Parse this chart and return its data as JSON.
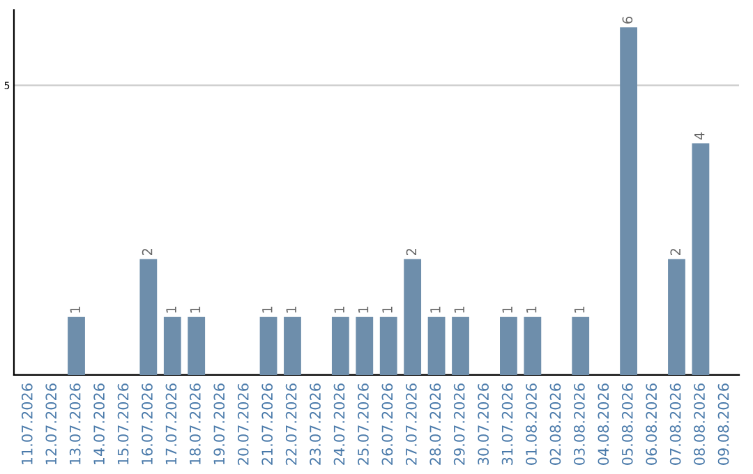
{
  "chart_data": {
    "type": "bar",
    "categories": [
      "11.07.2026",
      "12.07.2026",
      "13.07.2026",
      "14.07.2026",
      "15.07.2026",
      "16.07.2026",
      "17.07.2026",
      "18.07.2026",
      "19.07.2026",
      "20.07.2026",
      "21.07.2026",
      "22.07.2026",
      "23.07.2026",
      "24.07.2026",
      "25.07.2026",
      "26.07.2026",
      "27.07.2026",
      "28.07.2026",
      "29.07.2026",
      "30.07.2026",
      "31.07.2026",
      "01.08.2026",
      "02.08.2026",
      "03.08.2026",
      "04.08.2026",
      "05.08.2026",
      "06.08.2026",
      "07.08.2026",
      "08.08.2026",
      "09.08.2026"
    ],
    "values": [
      0,
      0,
      1,
      0,
      0,
      2,
      1,
      1,
      0,
      0,
      1,
      1,
      0,
      1,
      1,
      1,
      2,
      1,
      1,
      0,
      1,
      1,
      0,
      1,
      0,
      6,
      0,
      2,
      4,
      0
    ],
    "value_labels": [
      null,
      null,
      "1",
      null,
      null,
      "2",
      "1",
      "1",
      null,
      null,
      "1",
      "1",
      null,
      "1",
      "1",
      "1",
      "2",
      "1",
      "1",
      null,
      "1",
      "1",
      null,
      "1",
      null,
      "6",
      null,
      "2",
      "4",
      null
    ],
    "color": "#6e8eab",
    "ylim": [
      0,
      6.3
    ],
    "yticks": [
      5
    ],
    "grid": "y",
    "legend": false
  }
}
